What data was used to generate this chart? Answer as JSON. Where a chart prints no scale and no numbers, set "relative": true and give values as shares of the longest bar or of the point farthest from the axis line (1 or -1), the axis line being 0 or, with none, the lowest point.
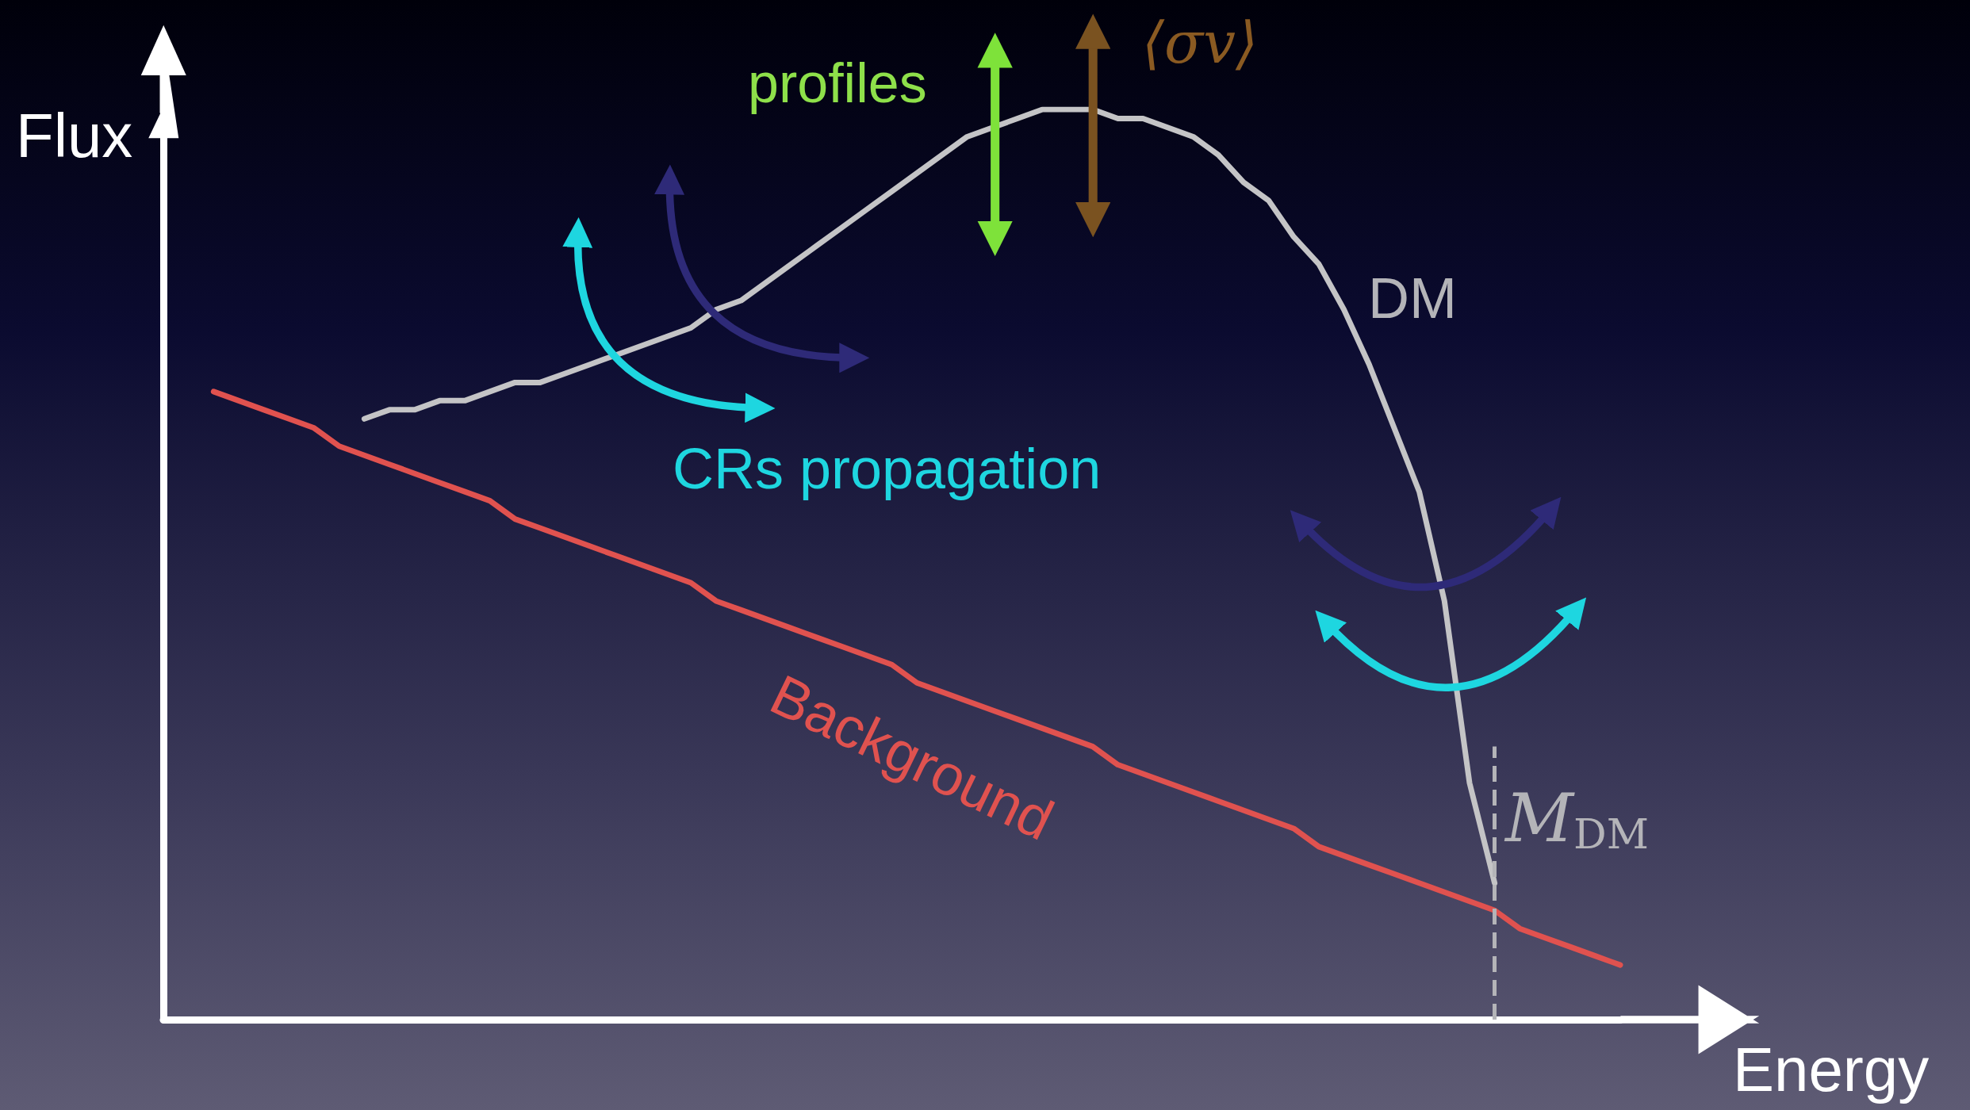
{
  "chart_data": {
    "type": "line",
    "relative": true,
    "xlabel": "Energy",
    "ylabel": "Flux",
    "categories": [
      null,
      null,
      null,
      null,
      null,
      null,
      null,
      null,
      null,
      null,
      null,
      null,
      null,
      null,
      null,
      null,
      null,
      null,
      null,
      null,
      null,
      null,
      null,
      null,
      null,
      null,
      null,
      null,
      null,
      null,
      null,
      null,
      null,
      null,
      null,
      null,
      null,
      null,
      null,
      null,
      null,
      null,
      null,
      null,
      null,
      null,
      null,
      null,
      null,
      null,
      null,
      null,
      null,
      null,
      null,
      null,
      null,
      null,
      null
    ],
    "series": [
      {
        "color": "#c4c4c6",
        "values": [
          null,
          null,
          null,
          null,
          null,
          null,
          null,
          null,
          0.66,
          0.67,
          0.67,
          0.68,
          0.68,
          0.69,
          0.7,
          0.7,
          0.71,
          0.72,
          0.73,
          0.74,
          0.75,
          0.76,
          0.78,
          0.79,
          0.81,
          0.83,
          0.85,
          0.87,
          0.89,
          0.91,
          0.93,
          0.95,
          0.97,
          0.98,
          0.99,
          1.0,
          1.0,
          1.0,
          0.99,
          0.99,
          0.98,
          0.97,
          0.95,
          0.92,
          0.9,
          0.86,
          0.83,
          0.78,
          0.72,
          0.65,
          0.58,
          0.46,
          0.26,
          0.15,
          null,
          null,
          null,
          null,
          null
        ]
      },
      {
        "color": "#e0524f",
        "values": [
          null,
          null,
          0.69,
          0.68,
          0.67,
          0.66,
          0.65,
          0.63,
          0.62,
          0.61,
          0.6,
          0.59,
          0.58,
          0.57,
          0.55,
          0.54,
          0.53,
          0.52,
          0.51,
          0.5,
          0.49,
          0.48,
          0.46,
          0.45,
          0.44,
          0.43,
          0.42,
          0.41,
          0.4,
          0.39,
          0.37,
          0.36,
          0.35,
          0.34,
          0.33,
          0.32,
          0.31,
          0.3,
          0.28,
          0.27,
          0.26,
          0.25,
          0.24,
          0.23,
          0.22,
          0.21,
          0.19,
          0.18,
          0.17,
          0.16,
          0.15,
          0.14,
          0.13,
          0.12,
          0.1,
          0.09,
          0.08,
          0.07,
          0.06
        ]
      }
    ],
    "ref_lines": [
      {
        "axis": "x",
        "label": "M$_{DM}$",
        "color": "#b4b4b8",
        "line_style": "dashed"
      }
    ],
    "annotations": [
      "profiles",
      "⟨σv⟩",
      "CRs propagation",
      "DM",
      "Background"
    ],
    "grid": false,
    "marker": "none",
    "line_style": "solid"
  }
}
